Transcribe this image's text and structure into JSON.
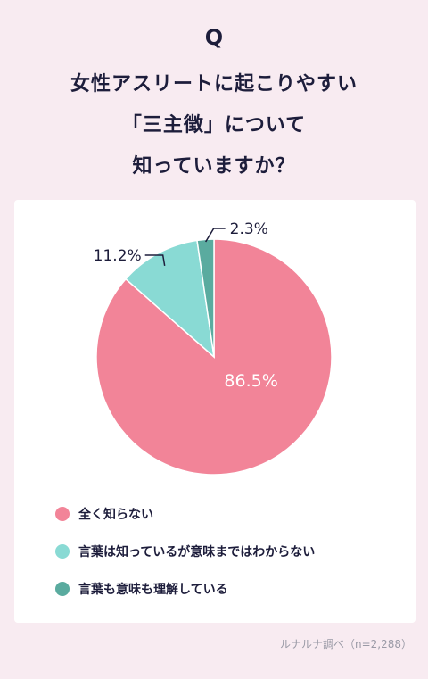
{
  "question_mark": "Q",
  "title_lines": [
    "女性アスリートに起こりやすい",
    "「三主徴」について",
    "知っていますか？"
  ],
  "chart_data": {
    "type": "pie",
    "start": "top, clockwise",
    "slices": [
      {
        "name": "全く知らない",
        "value": 86.5,
        "label": "86.5%",
        "color": "#f28498"
      },
      {
        "name": "言葉は知っているが意味まではわからない",
        "value": 11.2,
        "label": "11.2%",
        "color": "#89dad4"
      },
      {
        "name": "言葉も意味も理解している",
        "value": 2.3,
        "label": "2.3%",
        "color": "#5aab9f"
      }
    ]
  },
  "source": "ルナルナ調べ（n=2,288）",
  "colors": {
    "background": "#f8ebf1",
    "card": "#ffffff",
    "text": "#1d1d3b"
  }
}
